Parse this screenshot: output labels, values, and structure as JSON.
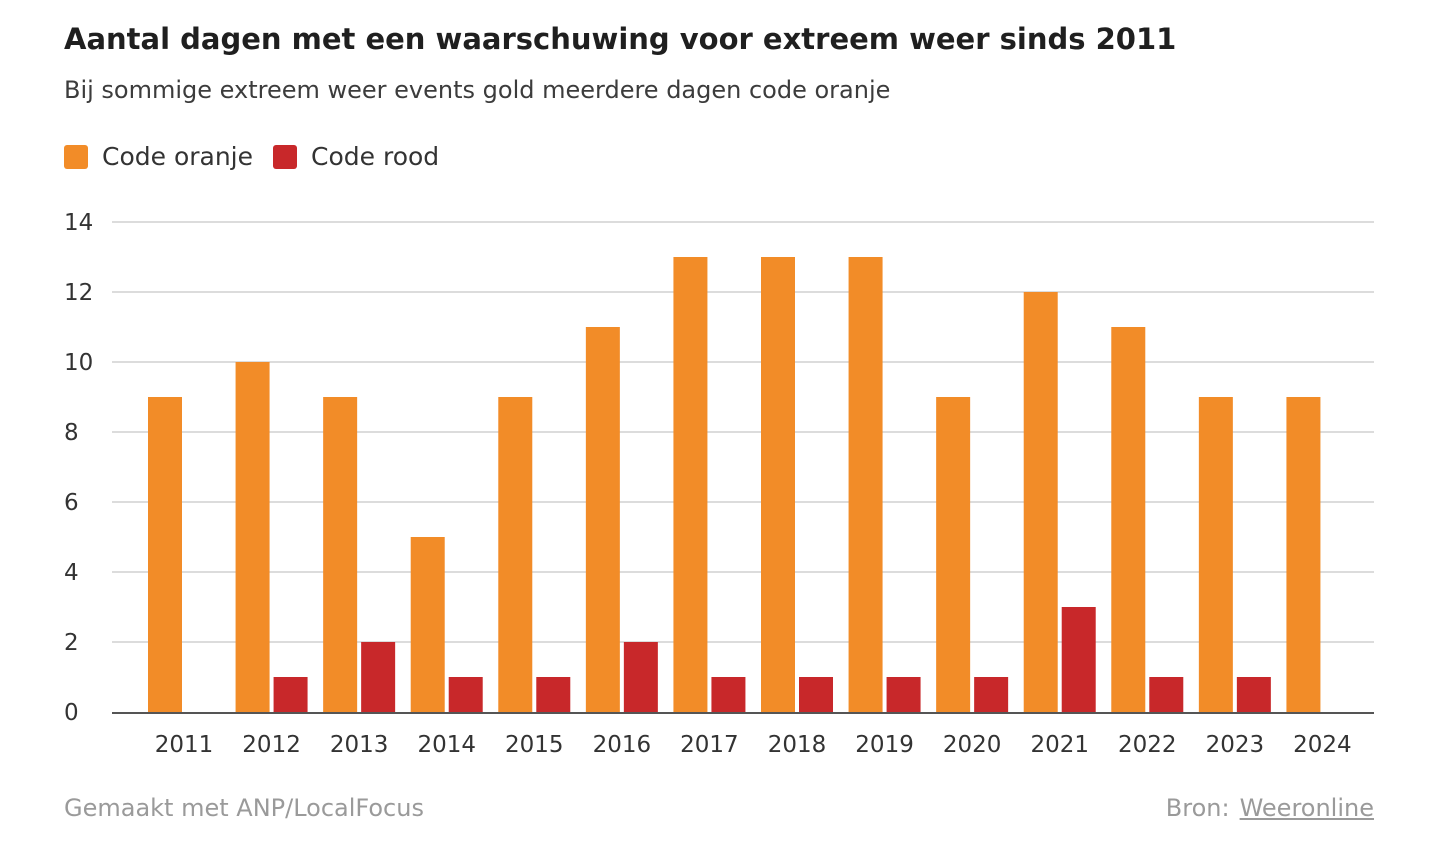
{
  "header": {
    "title": "Aantal dagen met een waarschuwing voor extreem weer sinds 2011",
    "subtitle": "Bij sommige extreem weer events gold meerdere dagen code oranje"
  },
  "footer": {
    "credit": "Gemaakt met ANP/LocalFocus",
    "source_label": "Bron:",
    "source_link": "Weeronline"
  },
  "chart_data": {
    "type": "bar",
    "title": "Aantal dagen met een waarschuwing voor extreem weer sinds 2011",
    "subtitle": "Bij sommige extreem weer events gold meerdere dagen code oranje",
    "xlabel": "",
    "ylabel": "",
    "ylim": [
      0,
      14
    ],
    "yticks": [
      0,
      2,
      4,
      6,
      8,
      10,
      12,
      14
    ],
    "grid": true,
    "legend_position": "top-left",
    "categories": [
      "2011",
      "2012",
      "2013",
      "2014",
      "2015",
      "2016",
      "2017",
      "2018",
      "2019",
      "2020",
      "2021",
      "2022",
      "2023",
      "2024"
    ],
    "series": [
      {
        "name": "Code oranje",
        "color": "#f28c28",
        "values": [
          9,
          10,
          9,
          5,
          9,
          11,
          13,
          13,
          13,
          9,
          12,
          11,
          9,
          9
        ]
      },
      {
        "name": "Code rood",
        "color": "#c8282a",
        "values": [
          0,
          1,
          2,
          1,
          1,
          2,
          1,
          1,
          1,
          1,
          3,
          1,
          1,
          0
        ]
      }
    ]
  }
}
